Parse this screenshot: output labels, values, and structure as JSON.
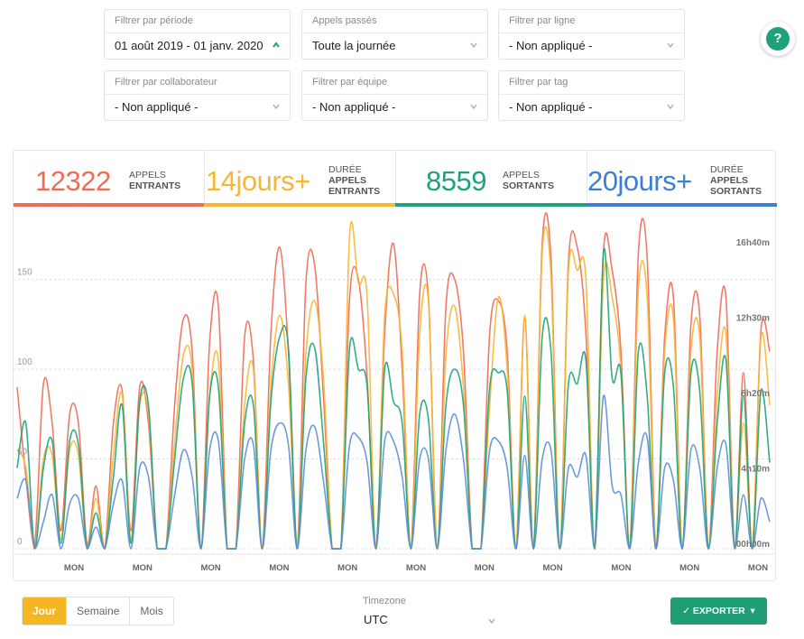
{
  "filters": [
    {
      "label": "Filtrer par période",
      "value": "01 août 2019 - 01 janv. 2020",
      "chevron": "up"
    },
    {
      "label": "Appels passés",
      "value": "Toute la journée",
      "chevron": "down"
    },
    {
      "label": "Filtrer par ligne",
      "value": "- Non appliqué -",
      "chevron": "down"
    },
    {
      "label": "Filtrer par collaborateur",
      "value": "- Non appliqué -",
      "chevron": "down"
    },
    {
      "label": "Filtrer par équipe",
      "value": "- Non appliqué -",
      "chevron": "down"
    },
    {
      "label": "Filtrer par tag",
      "value": "- Non appliqué -",
      "chevron": "down"
    }
  ],
  "help": {
    "icon": "help-icon",
    "glyph": "?"
  },
  "stats": [
    {
      "value": "12322",
      "line1": "APPELS",
      "line2": "ENTRANTS",
      "line3": "",
      "color": "#ef6c57"
    },
    {
      "value": "14jours+",
      "line1": "DURÉE",
      "line2": "APPELS",
      "line3": "ENTRANTS",
      "color": "#f7b733"
    },
    {
      "value": "8559",
      "line1": "APPELS",
      "line2": "SORTANTS",
      "line3": "",
      "color": "#1fa27a"
    },
    {
      "value": "20jours+",
      "line1": "DURÉE",
      "line2": "APPELS",
      "line3": "SORTANTS",
      "color": "#3d7fd6"
    }
  ],
  "chart_data": {
    "type": "line",
    "left_axis": {
      "ticks": [
        "0",
        "50",
        "100",
        "150"
      ],
      "range": [
        0,
        180
      ]
    },
    "right_axis": {
      "ticks": [
        "00h00m",
        "4h10m",
        "8h20m",
        "12h30m",
        "16h40m"
      ]
    },
    "x_ticks": [
      "MON",
      "MON",
      "MON",
      "MON",
      "MON",
      "MON",
      "MON",
      "MON",
      "MON",
      "MON",
      "MON"
    ],
    "grid": "dotted horizontal",
    "series": [
      {
        "color": "#ef6c57",
        "values": [
          90,
          40,
          2,
          92,
          70,
          10,
          75,
          70,
          2,
          35,
          0,
          70,
          88,
          10,
          90,
          70,
          0,
          0,
          80,
          128,
          110,
          0,
          115,
          135,
          0,
          0,
          118,
          105,
          0,
          120,
          168,
          110,
          0,
          148,
          158,
          85,
          0,
          0,
          140,
          150,
          95,
          0,
          120,
          170,
          100,
          0,
          142,
          140,
          0,
          135,
          150,
          110,
          0,
          0,
          120,
          138,
          110,
          0,
          128,
          0,
          170,
          162,
          0,
          160,
          168,
          120,
          0,
          165,
          155,
          110,
          0,
          165,
          162,
          0,
          118,
          140,
          0,
          125,
          130,
          0,
          110,
          140,
          0,
          98,
          0,
          122,
          110
        ]
      },
      {
        "color": "#f7b733",
        "values": [
          55,
          45,
          0,
          50,
          52,
          5,
          55,
          52,
          0,
          28,
          0,
          52,
          86,
          5,
          80,
          75,
          0,
          0,
          60,
          108,
          100,
          0,
          85,
          105,
          0,
          0,
          80,
          100,
          0,
          90,
          130,
          92,
          0,
          108,
          138,
          95,
          0,
          0,
          175,
          148,
          140,
          0,
          130,
          142,
          110,
          0,
          120,
          138,
          0,
          108,
          135,
          90,
          0,
          0,
          80,
          140,
          100,
          0,
          130,
          0,
          165,
          152,
          0,
          155,
          155,
          150,
          0,
          150,
          140,
          100,
          0,
          145,
          140,
          0,
          110,
          128,
          0,
          110,
          118,
          0,
          85,
          120,
          0,
          70,
          0,
          118,
          80
        ]
      },
      {
        "color": "#1fa27a",
        "values": [
          45,
          70,
          0,
          45,
          60,
          3,
          60,
          58,
          0,
          20,
          0,
          40,
          80,
          3,
          82,
          80,
          0,
          0,
          50,
          95,
          92,
          0,
          85,
          90,
          0,
          0,
          70,
          80,
          0,
          82,
          118,
          112,
          0,
          95,
          112,
          60,
          0,
          0,
          112,
          100,
          90,
          0,
          100,
          82,
          70,
          0,
          75,
          72,
          0,
          80,
          100,
          80,
          0,
          0,
          90,
          98,
          88,
          0,
          85,
          0,
          118,
          110,
          0,
          92,
          92,
          105,
          0,
          165,
          95,
          98,
          0,
          110,
          85,
          0,
          98,
          90,
          0,
          98,
          88,
          0,
          70,
          105,
          0,
          85,
          0,
          88,
          48
        ]
      },
      {
        "color": "#5b8fd9",
        "values": [
          28,
          38,
          0,
          15,
          30,
          0,
          25,
          28,
          0,
          12,
          0,
          25,
          38,
          0,
          45,
          40,
          0,
          0,
          30,
          55,
          40,
          0,
          55,
          60,
          0,
          0,
          50,
          58,
          0,
          55,
          70,
          58,
          0,
          55,
          68,
          38,
          0,
          0,
          58,
          62,
          48,
          0,
          60,
          60,
          40,
          0,
          50,
          50,
          0,
          55,
          75,
          50,
          0,
          0,
          55,
          60,
          45,
          0,
          52,
          0,
          50,
          55,
          0,
          45,
          40,
          52,
          0,
          85,
          35,
          30,
          0,
          48,
          62,
          0,
          45,
          38,
          0,
          55,
          45,
          0,
          45,
          58,
          0,
          30,
          0,
          28,
          15
        ]
      }
    ]
  },
  "bottom": {
    "granularity": [
      "Jour",
      "Semaine",
      "Mois"
    ],
    "active": "Jour",
    "timezone_label": "Timezone",
    "timezone_value": "UTC",
    "export_label": "EXPORTER"
  }
}
